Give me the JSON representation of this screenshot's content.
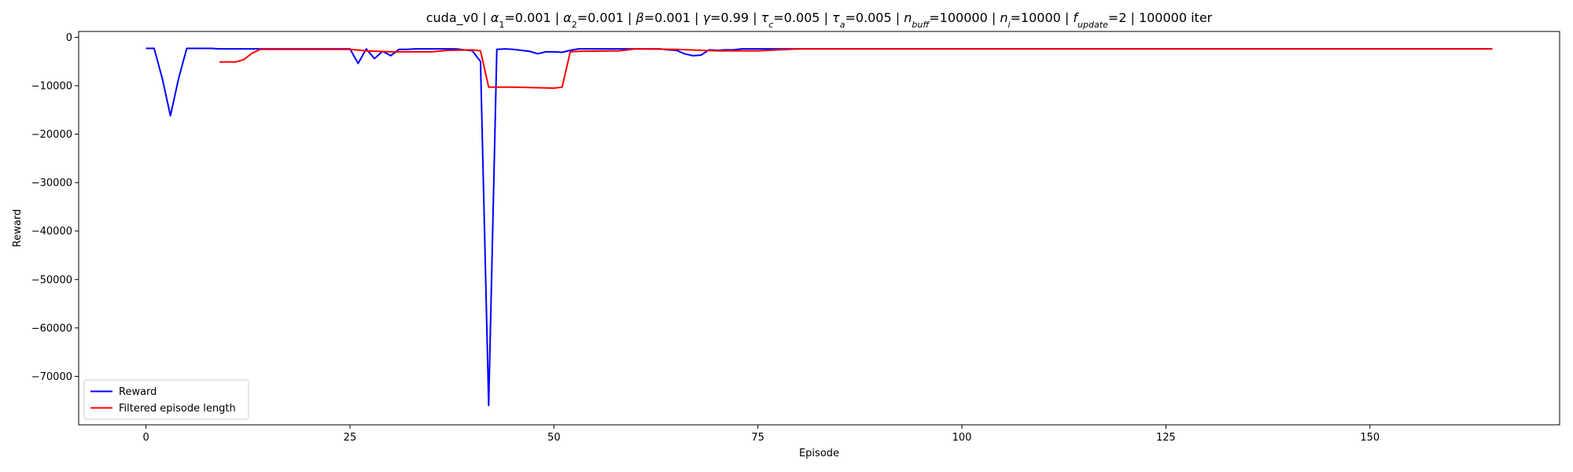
{
  "chart_data": {
    "type": "line",
    "title_parts": [
      {
        "t": "cuda_v0 | "
      },
      {
        "t": "α",
        "i": true
      },
      {
        "t": "1",
        "sub": true,
        "i": false
      },
      {
        "t": "=0.001 | "
      },
      {
        "t": "α",
        "i": true
      },
      {
        "t": "2",
        "sub": true,
        "i": false
      },
      {
        "t": "=0.001 | "
      },
      {
        "t": "β",
        "i": true
      },
      {
        "t": "=0.001 | "
      },
      {
        "t": "γ",
        "i": true
      },
      {
        "t": "=0.99 | "
      },
      {
        "t": "τ",
        "i": true
      },
      {
        "t": "c",
        "sub": true,
        "i": true
      },
      {
        "t": "=0.005 | "
      },
      {
        "t": "τ",
        "i": true
      },
      {
        "t": "a",
        "sub": true,
        "i": true
      },
      {
        "t": "=0.005 | "
      },
      {
        "t": "n",
        "i": true
      },
      {
        "t": "buff",
        "sub": true,
        "i": true
      },
      {
        "t": "=100000 | "
      },
      {
        "t": "n",
        "i": true
      },
      {
        "t": "i",
        "sub": true,
        "i": true
      },
      {
        "t": "=10000 | "
      },
      {
        "t": "f",
        "i": true
      },
      {
        "t": "update",
        "sub": true,
        "i": true
      },
      {
        "t": "=2 | 100000 iter"
      }
    ],
    "xlabel": "Episode",
    "ylabel": "Reward",
    "xlim": [
      -8.25,
      173.25
    ],
    "ylim": [
      -80000,
      1200
    ],
    "xticks": [
      0,
      25,
      50,
      75,
      100,
      125,
      150
    ],
    "yticks": [
      0,
      -10000,
      -20000,
      -30000,
      -40000,
      -50000,
      -60000,
      -70000
    ],
    "legend_position": "lower-left",
    "grid": false,
    "series": [
      {
        "name": "Reward",
        "color": "#0000ff",
        "x": [
          0,
          1,
          2,
          3,
          4,
          5,
          6,
          7,
          8,
          9,
          10,
          11,
          12,
          13,
          14,
          15,
          16,
          17,
          18,
          19,
          20,
          21,
          22,
          23,
          24,
          25,
          26,
          27,
          28,
          29,
          30,
          31,
          32,
          33,
          34,
          35,
          36,
          37,
          38,
          39,
          40,
          41,
          42,
          43,
          44,
          45,
          46,
          47,
          48,
          49,
          50,
          51,
          52,
          53,
          54,
          55,
          56,
          57,
          58,
          59,
          60,
          61,
          62,
          63,
          64,
          65,
          66,
          67,
          68,
          69,
          70,
          71,
          72,
          73,
          74,
          75,
          76,
          77,
          78,
          79,
          80,
          90,
          100,
          110,
          120,
          130,
          140,
          150,
          160,
          165
        ],
        "y": [
          -2300,
          -2300,
          -8500,
          -16200,
          -8500,
          -2300,
          -2300,
          -2300,
          -2300,
          -2400,
          -2400,
          -2400,
          -2400,
          -2400,
          -2400,
          -2400,
          -2400,
          -2400,
          -2400,
          -2400,
          -2400,
          -2400,
          -2400,
          -2400,
          -2400,
          -2400,
          -5400,
          -2400,
          -4400,
          -2900,
          -3800,
          -2500,
          -2500,
          -2400,
          -2400,
          -2400,
          -2400,
          -2400,
          -2400,
          -2600,
          -2800,
          -5000,
          -76000,
          -2500,
          -2400,
          -2500,
          -2700,
          -2900,
          -3400,
          -3000,
          -3000,
          -3100,
          -2700,
          -2400,
          -2400,
          -2400,
          -2400,
          -2400,
          -2400,
          -2400,
          -2400,
          -2400,
          -2400,
          -2400,
          -2600,
          -2700,
          -3400,
          -3800,
          -3700,
          -2600,
          -2700,
          -2600,
          -2600,
          -2400,
          -2400,
          -2400,
          -2400,
          -2400,
          -2400,
          -2400,
          -2400,
          -2400,
          -2400,
          -2400,
          -2400,
          -2400,
          -2400,
          -2400,
          -2400,
          -2400
        ]
      },
      {
        "name": "Filtered episode length",
        "color": "#ff0000",
        "x": [
          9,
          10,
          11,
          12,
          13,
          14,
          15,
          20,
          25,
          27,
          30,
          35,
          37,
          40,
          41,
          42,
          45,
          50,
          51,
          52,
          53,
          58,
          60,
          65,
          70,
          75,
          80,
          100,
          165
        ],
        "y": [
          -5100,
          -5100,
          -5100,
          -4600,
          -3300,
          -2500,
          -2500,
          -2500,
          -2500,
          -2800,
          -3000,
          -3000,
          -2700,
          -2600,
          -2800,
          -10300,
          -10300,
          -10500,
          -10300,
          -3000,
          -2900,
          -2800,
          -2400,
          -2500,
          -2800,
          -2800,
          -2400,
          -2400,
          -2400
        ]
      }
    ]
  }
}
